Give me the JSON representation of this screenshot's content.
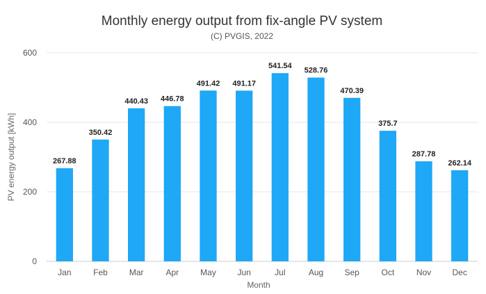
{
  "chart_data": {
    "type": "bar",
    "title": "Monthly energy output from fix-angle PV system",
    "subtitle": "(C) PVGIS, 2022",
    "xlabel": "Month",
    "ylabel": "PV energy output [kWh]",
    "ylim": [
      0,
      600
    ],
    "yticks": [
      0,
      200,
      400,
      600
    ],
    "grid": true,
    "bar_color": "#1ea8f5",
    "categories": [
      "Jan",
      "Feb",
      "Mar",
      "Apr",
      "May",
      "Jun",
      "Jul",
      "Aug",
      "Sep",
      "Oct",
      "Nov",
      "Dec"
    ],
    "values": [
      267.88,
      350.42,
      440.43,
      446.78,
      491.42,
      491.17,
      541.54,
      528.76,
      470.39,
      375.7,
      287.78,
      262.14
    ],
    "value_labels": [
      "267.88",
      "350.42",
      "440.43",
      "446.78",
      "491.42",
      "491.17",
      "541.54",
      "528.76",
      "470.39",
      "375.7",
      "287.78",
      "262.14"
    ]
  }
}
